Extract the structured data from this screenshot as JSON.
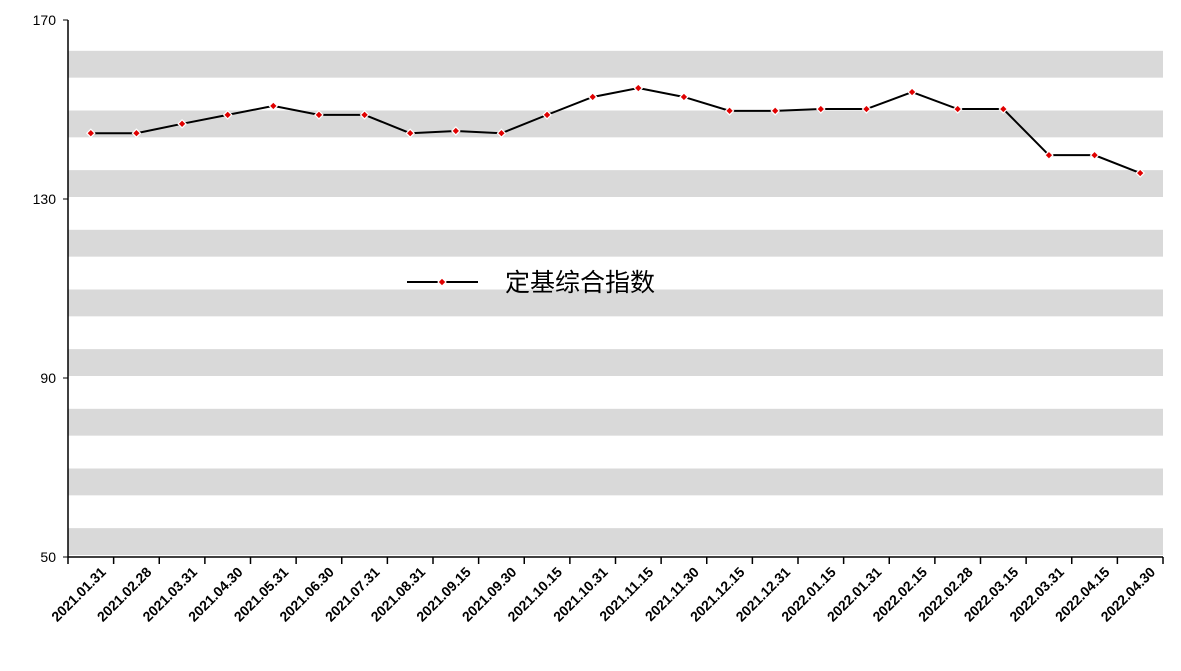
{
  "chart_data": {
    "type": "line",
    "categories": [
      "2021.01.31",
      "2021.02.28",
      "2021.03.31",
      "2021.04.30",
      "2021.05.31",
      "2021.06.30",
      "2021.07.31",
      "2021.08.31",
      "2021.09.15",
      "2021.09.30",
      "2021.10.15",
      "2021.10.31",
      "2021.11.15",
      "2021.11.30",
      "2021.12.15",
      "2021.12.31",
      "2022.01.15",
      "2022.01.31",
      "2022.02.15",
      "2022.02.28",
      "2022.03.15",
      "2022.03.31",
      "2022.04.15",
      "2022.04.30"
    ],
    "series": [
      {
        "name": "定基综合指数",
        "color": "#000000",
        "marker_color": "#e00000",
        "values": [
          144.7,
          144.7,
          146.8,
          148.8,
          150.8,
          148.8,
          148.8,
          144.7,
          145.2,
          144.7,
          148.8,
          152.8,
          154.8,
          152.8,
          149.7,
          149.7,
          150.1,
          150.1,
          153.9,
          150.1,
          150.1,
          139.8,
          139.8,
          135.8
        ]
      }
    ],
    "ylim": [
      50,
      170
    ],
    "yticks": [
      50,
      90,
      130,
      170
    ],
    "grid": "stripes"
  }
}
